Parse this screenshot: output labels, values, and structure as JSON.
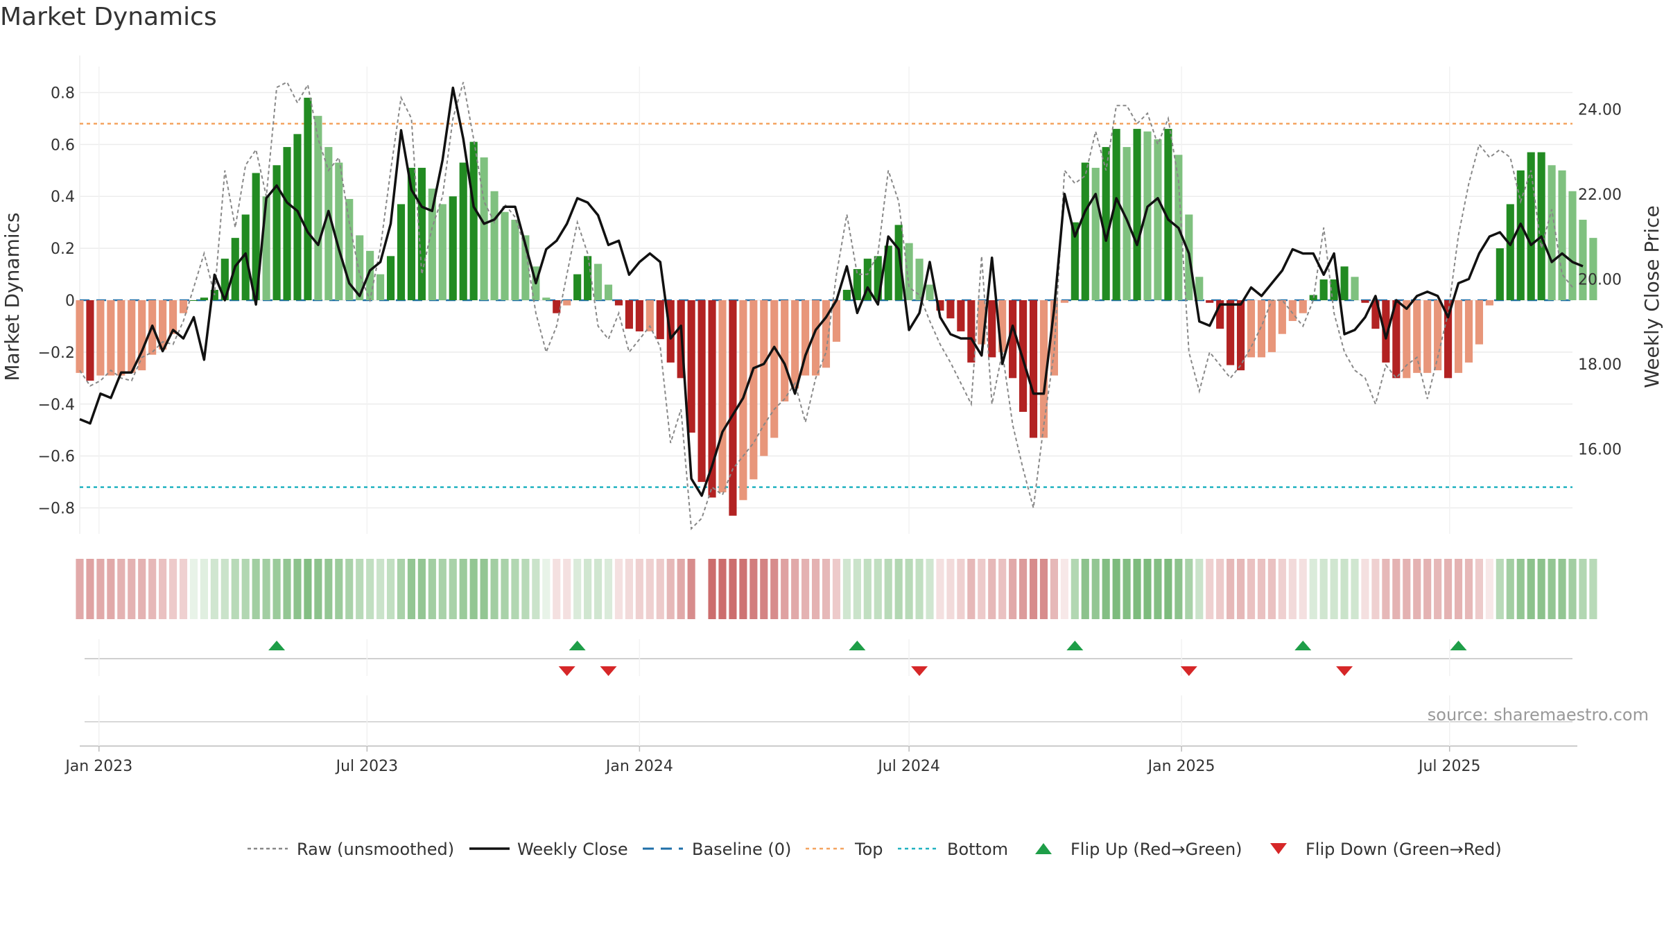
{
  "page": {
    "title": "Market Dynamics"
  },
  "source": "source: sharemaestro.com",
  "colors": {
    "strong_green": "#228b22",
    "light_green": "#7fc17f",
    "strong_red": "#b22222",
    "light_red": "#e8967a",
    "top_line": "#f4a460",
    "bottom_line": "#20b2c0",
    "baseline": "#1f6fa8",
    "raw": "#888888",
    "close": "#111111",
    "flip_up": "#1e9e48",
    "flip_down": "#d62728"
  },
  "chart_data": {
    "type": "bar",
    "title": "Market Dynamics",
    "ylabel": "Market Dynamics",
    "y2label": "Weekly Close Price",
    "ylim": [
      -0.9,
      0.9
    ],
    "y2lim": [
      14.0,
      25.0
    ],
    "yticks": [
      "0.8",
      "0.6",
      "0.4",
      "0.2",
      "0",
      "−0.2",
      "−0.4",
      "−0.6",
      "−0.8"
    ],
    "ytick_values": [
      0.8,
      0.6,
      0.4,
      0.2,
      0,
      -0.2,
      -0.4,
      -0.6,
      -0.8
    ],
    "y2ticks": [
      "24.00",
      "22.00",
      "20.00",
      "18.00",
      "16.00"
    ],
    "y2tick_values": [
      24,
      22,
      20,
      18,
      16
    ],
    "xlim": [
      "2022-12-19",
      "2025-09-22"
    ],
    "xticks": [
      {
        "label": "Jan 2023",
        "date": "2023-01-01"
      },
      {
        "label": "Jul 2023",
        "date": "2023-07-01"
      },
      {
        "label": "Jan 2024",
        "date": "2024-01-01"
      },
      {
        "label": "Jul 2024",
        "date": "2024-07-01"
      },
      {
        "label": "Jan 2025",
        "date": "2025-01-01"
      },
      {
        "label": "Jul 2025",
        "date": "2025-07-01"
      }
    ],
    "start_date": "2022-12-19",
    "top": 0.68,
    "bottom": -0.72,
    "baseline": 0,
    "smoothed": [
      -0.28,
      -0.31,
      -0.29,
      -0.29,
      -0.29,
      -0.28,
      -0.27,
      -0.21,
      -0.19,
      -0.13,
      -0.05,
      0,
      0.01,
      0.04,
      0.16,
      0.24,
      0.33,
      0.49,
      0.4,
      0.52,
      0.59,
      0.64,
      0.78,
      0.71,
      0.59,
      0.53,
      0.39,
      0.25,
      0.19,
      0.1,
      0.17,
      0.37,
      0.51,
      0.51,
      0.43,
      0.37,
      0.4,
      0.53,
      0.61,
      0.55,
      0.42,
      0.34,
      0.31,
      0.25,
      0.13,
      0.01,
      -0.05,
      -0.02,
      0.1,
      0.17,
      0.14,
      0.06,
      -0.02,
      -0.11,
      -0.12,
      -0.12,
      -0.15,
      -0.24,
      -0.3,
      -0.51,
      -0.7,
      -0.76,
      -0.74,
      -0.83,
      -0.77,
      -0.69,
      -0.6,
      -0.53,
      -0.39,
      -0.34,
      -0.29,
      -0.29,
      -0.26,
      -0.16,
      0.04,
      0.12,
      0.16,
      0.17,
      0.21,
      0.29,
      0.22,
      0.16,
      0.06,
      -0.04,
      -0.07,
      -0.12,
      -0.24,
      -0.17,
      -0.22,
      -0.2,
      -0.3,
      -0.43,
      -0.53,
      -0.53,
      -0.29,
      -0.01,
      0.3,
      0.53,
      0.51,
      0.59,
      0.66,
      0.59,
      0.66,
      0.65,
      0.62,
      0.66,
      0.56,
      0.33,
      0.09,
      -0.01,
      -0.11,
      -0.25,
      -0.27,
      -0.22,
      -0.22,
      -0.2,
      -0.13,
      -0.08,
      -0.05,
      0.02,
      0.08,
      0.08,
      0.13,
      0.09,
      -0.01,
      -0.11,
      -0.24,
      -0.3,
      -0.3,
      -0.28,
      -0.28,
      -0.27,
      -0.3,
      -0.28,
      -0.24,
      -0.17,
      -0.02,
      0.2,
      0.37,
      0.5,
      0.57,
      0.57,
      0.52,
      0.5,
      0.42,
      0.31,
      0.24
    ],
    "raw": [
      -0.27,
      -0.33,
      -0.31,
      -0.27,
      -0.3,
      -0.31,
      -0.22,
      -0.2,
      -0.16,
      -0.17,
      -0.08,
      0.05,
      0.18,
      0.02,
      0.5,
      0.28,
      0.52,
      0.58,
      0.4,
      0.82,
      0.84,
      0.76,
      0.83,
      0.62,
      0.5,
      0.55,
      0.3,
      0.1,
      0,
      0.2,
      0.5,
      0.78,
      0.7,
      0.1,
      0.28,
      0.4,
      0.7,
      0.84,
      0.62,
      0.38,
      0.3,
      0.37,
      0.32,
      0.2,
      -0.05,
      -0.2,
      -0.1,
      0.1,
      0.3,
      0.18,
      -0.1,
      -0.15,
      -0.05,
      -0.2,
      -0.15,
      -0.1,
      -0.18,
      -0.55,
      -0.42,
      -0.88,
      -0.84,
      -0.72,
      -0.75,
      -0.65,
      -0.6,
      -0.55,
      -0.48,
      -0.42,
      -0.38,
      -0.32,
      -0.47,
      -0.3,
      -0.2,
      0.1,
      0.33,
      0.1,
      0.1,
      0.18,
      0.5,
      0.38,
      0.05,
      0.02,
      -0.08,
      -0.17,
      -0.24,
      -0.32,
      -0.4,
      0.17,
      -0.4,
      -0.2,
      -0.48,
      -0.65,
      -0.8,
      -0.48,
      -0.2,
      0.5,
      0.45,
      0.48,
      0.65,
      0.5,
      0.75,
      0.75,
      0.68,
      0.72,
      0.6,
      0.7,
      0.46,
      -0.2,
      -0.35,
      -0.2,
      -0.25,
      -0.3,
      -0.25,
      -0.18,
      -0.1,
      0,
      0,
      -0.05,
      -0.1,
      0,
      0.28,
      -0.05,
      -0.2,
      -0.27,
      -0.3,
      -0.4,
      -0.25,
      -0.3,
      -0.25,
      -0.22,
      -0.38,
      -0.22,
      -0.05,
      0.25,
      0.45,
      0.6,
      0.55,
      0.58,
      0.55,
      0.38,
      0.5,
      0.2,
      0.35,
      0.1,
      0.05
    ],
    "weekly_close": [
      16.7,
      16.6,
      17.3,
      17.2,
      17.8,
      17.8,
      18.3,
      18.9,
      18.3,
      18.8,
      18.6,
      19.1,
      18.1,
      20.1,
      19.5,
      20.3,
      20.6,
      19.4,
      21.9,
      22.2,
      21.8,
      21.6,
      21.1,
      20.8,
      21.6,
      20.7,
      19.9,
      19.6,
      20.2,
      20.4,
      21.3,
      23.5,
      22.1,
      21.7,
      21.6,
      22.8,
      24.5,
      23.3,
      21.7,
      21.3,
      21.4,
      21.7,
      21.7,
      20.8,
      19.9,
      20.7,
      20.9,
      21.3,
      21.9,
      21.8,
      21.5,
      20.8,
      20.9,
      20.1,
      20.4,
      20.6,
      20.4,
      18.6,
      18.9,
      15.3,
      14.9,
      15.6,
      16.4,
      16.8,
      17.2,
      17.9,
      18.0,
      18.4,
      18.0,
      17.3,
      18.2,
      18.8,
      19.1,
      19.5,
      20.3,
      19.2,
      19.8,
      19.4,
      21.0,
      20.7,
      18.8,
      19.2,
      20.4,
      19.1,
      18.7,
      18.6,
      18.6,
      18.2,
      20.5,
      18.0,
      18.9,
      18.1,
      17.3,
      17.3,
      19.3,
      22.0,
      21.0,
      21.6,
      22.0,
      20.9,
      21.9,
      21.4,
      20.8,
      21.7,
      21.9,
      21.4,
      21.2,
      20.6,
      19.0,
      18.9,
      19.4,
      19.4,
      19.4,
      19.8,
      19.6,
      19.9,
      20.2,
      20.7,
      20.6,
      20.6,
      20.1,
      20.6,
      18.7,
      18.8,
      19.1,
      19.6,
      18.6,
      19.5,
      19.3,
      19.6,
      19.7,
      19.6,
      19.1,
      19.9,
      20.0,
      20.6,
      21.0,
      21.1,
      20.8,
      21.3,
      20.8,
      21.0,
      20.4,
      20.6,
      20.4,
      20.3
    ],
    "intensity_strip": [
      0.55,
      0.6,
      0.55,
      0.55,
      0.5,
      0.5,
      0.5,
      0.45,
      0.4,
      0.35,
      0.3,
      0.15,
      0.2,
      0.3,
      0.35,
      0.45,
      0.5,
      0.6,
      0.6,
      0.65,
      0.7,
      0.75,
      0.8,
      0.75,
      0.7,
      0.65,
      0.55,
      0.45,
      0.4,
      0.35,
      0.4,
      0.55,
      0.7,
      0.7,
      0.6,
      0.55,
      0.55,
      0.65,
      0.7,
      0.7,
      0.6,
      0.55,
      0.5,
      0.45,
      0.35,
      0.15,
      0.2,
      0.2,
      0.25,
      0.3,
      0.3,
      0.25,
      0.2,
      0.25,
      0.3,
      0.3,
      0.35,
      0.45,
      0.55,
      0.75,
      0.9,
      0.95,
      0.95,
      0.95,
      0.9,
      0.85,
      0.8,
      0.75,
      0.6,
      0.55,
      0.5,
      0.5,
      0.45,
      0.35,
      0.3,
      0.35,
      0.4,
      0.4,
      0.45,
      0.5,
      0.45,
      0.4,
      0.3,
      0.2,
      0.25,
      0.3,
      0.45,
      0.35,
      0.45,
      0.4,
      0.55,
      0.65,
      0.75,
      0.75,
      0.45,
      0.15,
      0.5,
      0.75,
      0.7,
      0.8,
      0.85,
      0.8,
      0.85,
      0.85,
      0.8,
      0.85,
      0.75,
      0.55,
      0.35,
      0.3,
      0.35,
      0.45,
      0.45,
      0.4,
      0.4,
      0.4,
      0.3,
      0.25,
      0.2,
      0.25,
      0.3,
      0.3,
      0.35,
      0.3,
      0.2,
      0.3,
      0.45,
      0.5,
      0.5,
      0.5,
      0.5,
      0.45,
      0.5,
      0.5,
      0.45,
      0.35,
      0.15,
      0.45,
      0.6,
      0.7,
      0.75,
      0.75,
      0.7,
      0.7,
      0.6,
      0.5,
      0.45
    ],
    "strip_gap_index": 60,
    "flip_up_dates": [
      "2023-05-01",
      "2023-11-20",
      "2024-05-27",
      "2024-10-21",
      "2025-03-24",
      "2025-07-07"
    ],
    "flip_down_dates": [
      "2023-11-13",
      "2023-12-11",
      "2024-07-08",
      "2025-01-06",
      "2025-04-21"
    ],
    "legend": [
      {
        "key": "raw",
        "label": "Raw (unsmoothed)"
      },
      {
        "key": "close",
        "label": "Weekly Close"
      },
      {
        "key": "baseline",
        "label": "Baseline (0)"
      },
      {
        "key": "top",
        "label": "Top"
      },
      {
        "key": "bottom",
        "label": "Bottom"
      },
      {
        "key": "flip_up",
        "label": "Flip Up (Red→Green)"
      },
      {
        "key": "flip_down",
        "label": "Flip Down (Green→Red)"
      }
    ]
  }
}
